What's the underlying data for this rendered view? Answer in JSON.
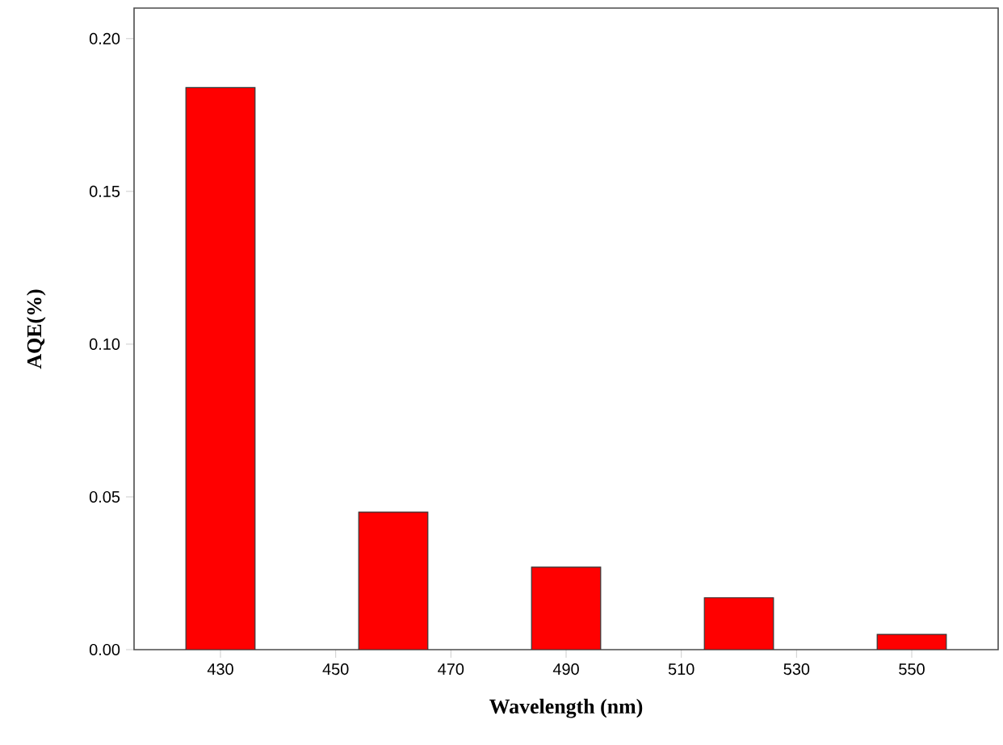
{
  "chart_data": {
    "type": "bar",
    "xlabel": "Wavelength (nm)",
    "ylabel": "AQE(%)",
    "x": [
      430,
      460,
      490,
      520,
      550
    ],
    "values": [
      0.184,
      0.045,
      0.027,
      0.017,
      0.005
    ],
    "color": "#ff0000",
    "xlim": [
      415,
      565
    ],
    "xticks": [
      430,
      450,
      470,
      490,
      510,
      530,
      550
    ],
    "ylim": [
      0,
      0.21
    ],
    "yticks": [
      {
        "value": 0,
        "label": "0.00"
      },
      {
        "value": 0.05,
        "label": "0.05"
      },
      {
        "value": 0.1,
        "label": "0.10"
      },
      {
        "value": 0.15,
        "label": "0.15"
      },
      {
        "value": 0.2,
        "label": "0.20"
      }
    ],
    "grid": false
  }
}
